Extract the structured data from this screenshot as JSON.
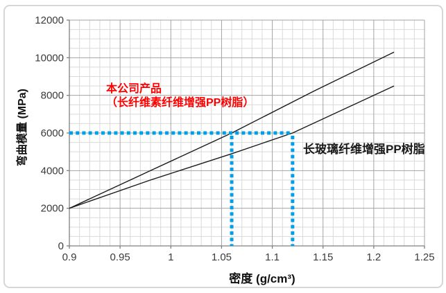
{
  "chart_data": {
    "type": "line",
    "title": "",
    "xlabel": "密度 (g/cm³)",
    "ylabel": "弯曲模量 (MPa)",
    "xlim": [
      0.9,
      1.25
    ],
    "ylim": [
      0,
      12000
    ],
    "x_ticks": [
      0.9,
      0.95,
      1,
      1.05,
      1.1,
      1.15,
      1.2,
      1.25
    ],
    "x_tick_labels": [
      "0.9",
      "0.95",
      "1",
      "1.05",
      "1.1",
      "1.15",
      "1.2",
      "1.25"
    ],
    "y_ticks": [
      0,
      2000,
      4000,
      6000,
      8000,
      10000,
      12000
    ],
    "y_tick_labels": [
      "0",
      "2000",
      "4000",
      "6000",
      "8000",
      "10000",
      "12000"
    ],
    "x_minor_step": 0.01,
    "y_minor_step": 500,
    "grid": "major+minor",
    "legend": "none",
    "series": [
      {
        "name": "本公司产品（长纤维素纤维增强PP树脂）",
        "color": "#1a1a1a",
        "points": [
          [
            0.9,
            2000
          ],
          [
            0.98,
            4000
          ],
          [
            1.06,
            6000
          ],
          [
            1.14,
            8200
          ],
          [
            1.22,
            10300
          ]
        ]
      },
      {
        "name": "长玻璃纤维增强PP树脂",
        "color": "#1a1a1a",
        "points": [
          [
            0.9,
            2000
          ],
          [
            0.98,
            3500
          ],
          [
            1.06,
            4900
          ],
          [
            1.12,
            6000
          ],
          [
            1.22,
            8500
          ]
        ]
      }
    ],
    "reference_lines": {
      "color": "#00A0E8",
      "flexural_modulus": 6000,
      "density_product": 1.06,
      "density_competitor": 1.12
    },
    "annotations": [
      {
        "id": "product",
        "lines": [
          "本公司产品",
          "（长纤维素纤维增强PP树脂）"
        ],
        "color": "#ff0000"
      },
      {
        "id": "competitor",
        "lines": [
          "长玻璃纤维增强PP树脂"
        ],
        "color": "#1a1a1a"
      }
    ]
  },
  "colors": {
    "minor_grid": "#d9d9d9",
    "major_grid": "#a3a3a3",
    "axis": "#7f7f7f",
    "tick_text": "#3a3a3a",
    "background": "#ffffff",
    "frame_border": "#d6d6d6"
  }
}
